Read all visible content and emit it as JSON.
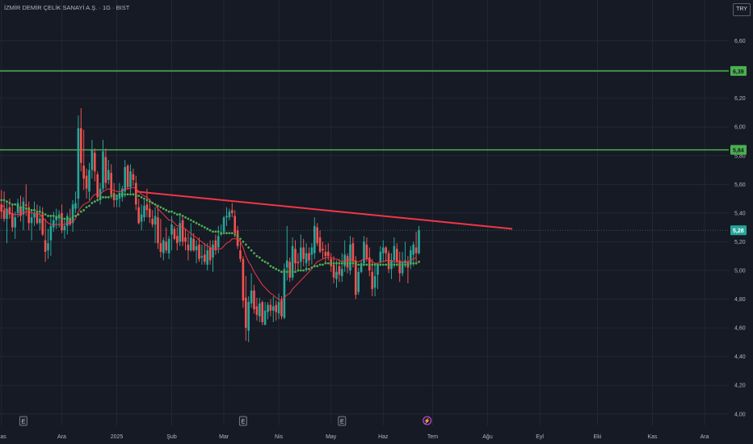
{
  "header": {
    "symbol_title": "İZMİR DEMİR ÇELİK SANAYİ A.Ş. · 1G · BIST",
    "currency": "TRY"
  },
  "colors": {
    "background": "#161a25",
    "grid": "#232733",
    "axis_text": "#b2b5be",
    "up": "#26a69a",
    "down": "#ef5350",
    "trendline": "#f23645",
    "level_line": "#4caf50",
    "ma_fast": "#f23645",
    "ma_slow": "#4caf50"
  },
  "chart_data": {
    "type": "candlestick",
    "y_axis": {
      "range": [
        3.92,
        6.8
      ],
      "tick_labels": [
        "6,60",
        "6,40",
        "6,20",
        "6,00",
        "5,80",
        "5,60",
        "5,40",
        "5,20",
        "5,00",
        "4,80",
        "4,60",
        "4,40",
        "4,20",
        "4,00"
      ],
      "tick_values": [
        6.6,
        6.4,
        6.2,
        6.0,
        5.8,
        5.6,
        5.4,
        5.2,
        5.0,
        4.8,
        4.6,
        4.4,
        4.2,
        4.0
      ],
      "scale": "linear"
    },
    "x_axis": {
      "tick_labels": [
        "Kas",
        "Ara",
        "2025",
        "Şub",
        "Mar",
        "Nis",
        "May",
        "Haz",
        "Tem",
        "Ağu",
        "Eyl",
        "Eki",
        "Kas",
        "Ara"
      ],
      "tick_index": [
        0,
        22,
        42,
        62,
        81,
        101,
        120,
        139,
        157,
        177,
        196,
        217,
        237,
        256
      ]
    },
    "grid": true,
    "last_price": 5.28,
    "last_price_label": "5,28",
    "horizontal_levels": [
      {
        "value": 6.39,
        "label": "6,39"
      },
      {
        "value": 5.84,
        "label": "5,84"
      }
    ],
    "trendline": {
      "start": {
        "index": 49,
        "price": 5.55
      },
      "end": {
        "index": 186,
        "price": 5.29
      }
    },
    "event_markers": [
      {
        "index": 8,
        "label": "E"
      },
      {
        "index": 88,
        "label": "E"
      },
      {
        "index": 124,
        "label": "E"
      },
      {
        "index": 155,
        "label": "⚡"
      }
    ],
    "ohlc": [
      [
        5.46,
        5.56,
        5.36,
        5.41
      ],
      [
        5.42,
        5.55,
        5.34,
        5.36
      ],
      [
        5.36,
        5.48,
        5.19,
        5.43
      ],
      [
        5.44,
        5.5,
        5.36,
        5.39
      ],
      [
        5.4,
        5.46,
        5.27,
        5.3
      ],
      [
        5.3,
        5.41,
        5.22,
        5.37
      ],
      [
        5.4,
        5.5,
        5.37,
        5.47
      ],
      [
        5.44,
        5.52,
        5.34,
        5.38
      ],
      [
        5.39,
        5.51,
        5.28,
        5.48
      ],
      [
        5.46,
        5.6,
        5.38,
        5.45
      ],
      [
        5.44,
        5.48,
        5.28,
        5.33
      ],
      [
        5.33,
        5.42,
        5.21,
        5.37
      ],
      [
        5.37,
        5.48,
        5.31,
        5.4
      ],
      [
        5.4,
        5.46,
        5.32,
        5.33
      ],
      [
        5.33,
        5.45,
        5.28,
        5.36
      ],
      [
        5.39,
        5.44,
        5.24,
        5.25
      ],
      [
        5.21,
        5.36,
        5.06,
        5.13
      ],
      [
        5.14,
        5.29,
        5.08,
        5.19
      ],
      [
        5.21,
        5.37,
        5.1,
        5.31
      ],
      [
        5.3,
        5.41,
        5.27,
        5.35
      ],
      [
        5.35,
        5.43,
        5.29,
        5.38
      ],
      [
        5.37,
        5.42,
        5.3,
        5.39
      ],
      [
        5.4,
        5.46,
        5.26,
        5.28
      ],
      [
        5.28,
        5.35,
        5.22,
        5.31
      ],
      [
        5.31,
        5.4,
        5.25,
        5.38
      ],
      [
        5.36,
        5.43,
        5.31,
        5.32
      ],
      [
        5.33,
        5.49,
        5.27,
        5.46
      ],
      [
        5.43,
        5.55,
        5.4,
        5.47
      ],
      [
        5.5,
        6.08,
        5.43,
        5.99
      ],
      [
        5.99,
        6.13,
        5.69,
        5.75
      ],
      [
        5.73,
        5.98,
        5.56,
        5.64
      ],
      [
        5.66,
        5.71,
        5.5,
        5.57
      ],
      [
        5.55,
        5.75,
        5.49,
        5.7
      ],
      [
        5.7,
        5.91,
        5.64,
        5.84
      ],
      [
        5.82,
        5.85,
        5.62,
        5.69
      ],
      [
        5.67,
        5.69,
        5.48,
        5.51
      ],
      [
        5.49,
        5.61,
        5.46,
        5.57
      ],
      [
        5.57,
        5.91,
        5.55,
        5.83
      ],
      [
        5.79,
        5.85,
        5.57,
        5.61
      ],
      [
        5.63,
        5.77,
        5.6,
        5.7
      ],
      [
        5.68,
        5.74,
        5.5,
        5.53
      ],
      [
        5.54,
        5.61,
        5.44,
        5.49
      ],
      [
        5.49,
        5.53,
        5.44,
        5.51
      ],
      [
        5.5,
        5.61,
        5.44,
        5.54
      ],
      [
        5.51,
        5.59,
        5.48,
        5.57
      ],
      [
        5.55,
        5.77,
        5.51,
        5.72
      ],
      [
        5.73,
        5.74,
        5.56,
        5.58
      ],
      [
        5.58,
        5.74,
        5.54,
        5.69
      ],
      [
        5.67,
        5.71,
        5.59,
        5.63
      ],
      [
        5.61,
        5.66,
        5.42,
        5.46
      ],
      [
        5.44,
        5.5,
        5.32,
        5.33
      ],
      [
        5.34,
        5.46,
        5.28,
        5.39
      ],
      [
        5.37,
        5.49,
        5.34,
        5.45
      ],
      [
        5.46,
        5.57,
        5.37,
        5.42
      ],
      [
        5.43,
        5.5,
        5.33,
        5.37
      ],
      [
        5.36,
        5.42,
        5.3,
        5.32
      ],
      [
        5.32,
        5.44,
        5.19,
        5.38
      ],
      [
        5.37,
        5.44,
        5.15,
        5.19
      ],
      [
        5.19,
        5.36,
        5.09,
        5.13
      ],
      [
        5.12,
        5.23,
        5.07,
        5.21
      ],
      [
        5.2,
        5.3,
        5.12,
        5.14
      ],
      [
        5.12,
        5.24,
        5.08,
        5.22
      ],
      [
        5.25,
        5.38,
        5.14,
        5.32
      ],
      [
        5.29,
        5.31,
        5.21,
        5.22
      ],
      [
        5.24,
        5.3,
        5.14,
        5.19
      ],
      [
        5.2,
        5.4,
        5.17,
        5.33
      ],
      [
        5.35,
        5.37,
        5.17,
        5.2
      ],
      [
        5.23,
        5.29,
        5.14,
        5.2
      ],
      [
        5.18,
        5.26,
        5.07,
        5.14
      ],
      [
        5.14,
        5.33,
        5.13,
        5.23
      ],
      [
        5.22,
        5.26,
        5.13,
        5.14
      ],
      [
        5.14,
        5.21,
        5.05,
        5.17
      ],
      [
        5.18,
        5.23,
        5.06,
        5.08
      ],
      [
        5.09,
        5.18,
        5.04,
        5.1
      ],
      [
        5.11,
        5.19,
        5.04,
        5.06
      ],
      [
        5.04,
        5.19,
        5.0,
        5.14
      ],
      [
        5.16,
        5.21,
        5.04,
        5.07
      ],
      [
        5.09,
        5.21,
        4.99,
        5.18
      ],
      [
        5.21,
        5.25,
        5.11,
        5.14
      ],
      [
        5.16,
        5.31,
        5.12,
        5.24
      ],
      [
        5.25,
        5.32,
        5.24,
        5.26
      ],
      [
        5.27,
        5.38,
        5.26,
        5.37
      ],
      [
        5.37,
        5.44,
        5.31,
        5.38
      ],
      [
        5.37,
        5.43,
        5.35,
        5.41
      ],
      [
        5.42,
        5.47,
        5.37,
        5.4
      ],
      [
        5.38,
        5.42,
        5.23,
        5.26
      ],
      [
        5.28,
        5.31,
        5.15,
        5.17
      ],
      [
        5.14,
        5.21,
        5.06,
        5.08
      ],
      [
        5.08,
        5.1,
        4.74,
        4.79
      ],
      [
        4.81,
        4.96,
        4.51,
        4.6
      ],
      [
        4.58,
        4.82,
        4.5,
        4.78
      ],
      [
        4.77,
        4.98,
        4.74,
        4.86
      ],
      [
        4.86,
        4.9,
        4.7,
        4.73
      ],
      [
        4.75,
        4.81,
        4.65,
        4.69
      ],
      [
        4.68,
        4.81,
        4.64,
        4.77
      ],
      [
        4.78,
        4.79,
        4.62,
        4.64
      ],
      [
        4.62,
        4.78,
        4.62,
        4.72
      ],
      [
        4.71,
        4.78,
        4.66,
        4.76
      ],
      [
        4.76,
        4.8,
        4.68,
        4.72
      ],
      [
        4.72,
        4.82,
        4.64,
        4.75
      ],
      [
        4.76,
        4.79,
        4.65,
        4.71
      ],
      [
        4.7,
        4.84,
        4.66,
        4.78
      ],
      [
        4.79,
        4.82,
        4.66,
        4.68
      ],
      [
        4.67,
        5.05,
        4.66,
        5.01
      ],
      [
        5.02,
        5.31,
        4.93,
        5.07
      ],
      [
        5.06,
        5.09,
        4.92,
        4.95
      ],
      [
        4.95,
        5.23,
        4.93,
        5.17
      ],
      [
        5.15,
        5.21,
        5.0,
        5.05
      ],
      [
        5.06,
        5.12,
        4.99,
        5.05
      ],
      [
        5.06,
        5.25,
        5.01,
        5.16
      ],
      [
        5.16,
        5.22,
        5.03,
        5.08
      ],
      [
        5.05,
        5.19,
        4.99,
        5.12
      ],
      [
        5.12,
        5.16,
        5.03,
        5.07
      ],
      [
        5.11,
        5.19,
        5.04,
        5.16
      ],
      [
        5.12,
        5.37,
        5.08,
        5.31
      ],
      [
        5.3,
        5.33,
        5.17,
        5.19
      ],
      [
        5.23,
        5.28,
        5.12,
        5.13
      ],
      [
        5.15,
        5.2,
        5.08,
        5.14
      ],
      [
        5.13,
        5.18,
        5.05,
        5.1
      ],
      [
        5.13,
        5.19,
        5.07,
        5.1
      ],
      [
        5.08,
        5.12,
        4.99,
        5.03
      ],
      [
        5.04,
        5.1,
        4.91,
        4.95
      ],
      [
        4.94,
        5.07,
        4.88,
        4.99
      ],
      [
        5.03,
        5.08,
        4.92,
        4.97
      ],
      [
        4.96,
        5.12,
        4.92,
        5.01
      ],
      [
        5.03,
        5.21,
        4.99,
        5.11
      ],
      [
        5.1,
        5.12,
        4.98,
        5.02
      ],
      [
        5.0,
        5.24,
        4.97,
        5.18
      ],
      [
        5.19,
        5.23,
        5.02,
        5.06
      ],
      [
        5.07,
        5.1,
        4.8,
        4.83
      ],
      [
        4.85,
        5.02,
        4.83,
        4.99
      ],
      [
        4.99,
        5.07,
        4.98,
        5.05
      ],
      [
        5.05,
        5.24,
        5.03,
        5.2
      ],
      [
        5.18,
        5.23,
        5.06,
        5.08
      ],
      [
        5.09,
        5.16,
        4.96,
        5.0
      ],
      [
        4.99,
        5.08,
        4.82,
        4.87
      ],
      [
        4.88,
        5.04,
        4.82,
        4.96
      ],
      [
        4.97,
        5.05,
        4.87,
        5.04
      ],
      [
        5.06,
        5.17,
        5.03,
        5.13
      ],
      [
        5.12,
        5.21,
        5.06,
        5.16
      ],
      [
        5.16,
        5.17,
        5.06,
        5.12
      ],
      [
        5.12,
        5.14,
        4.98,
        5.01
      ],
      [
        5.01,
        5.12,
        4.94,
        5.07
      ],
      [
        5.07,
        5.23,
        5.02,
        5.17
      ],
      [
        5.15,
        5.19,
        5.03,
        5.06
      ],
      [
        5.07,
        5.13,
        4.92,
        4.98
      ],
      [
        4.98,
        5.13,
        4.96,
        5.06
      ],
      [
        5.05,
        5.2,
        5.02,
        5.07
      ],
      [
        5.06,
        5.1,
        4.91,
        5.02
      ],
      [
        5.04,
        5.17,
        5.01,
        5.14
      ],
      [
        5.11,
        5.2,
        5.03,
        5.18
      ],
      [
        5.16,
        5.27,
        5.04,
        5.12
      ],
      [
        5.12,
        5.31,
        5.11,
        5.28
      ]
    ],
    "ma_fast": [
      5.46,
      5.44,
      5.41,
      5.41,
      5.39,
      5.39,
      5.39,
      5.39,
      5.4,
      5.41,
      5.41,
      5.4,
      5.4,
      5.4,
      5.39,
      5.37,
      5.35,
      5.33,
      5.32,
      5.32,
      5.32,
      5.32,
      5.32,
      5.32,
      5.33,
      5.33,
      5.34,
      5.36,
      5.41,
      5.44,
      5.46,
      5.47,
      5.48,
      5.51,
      5.53,
      5.53,
      5.53,
      5.55,
      5.56,
      5.57,
      5.56,
      5.56,
      5.55,
      5.55,
      5.55,
      5.57,
      5.57,
      5.57,
      5.58,
      5.57,
      5.55,
      5.53,
      5.52,
      5.51,
      5.49,
      5.47,
      5.46,
      5.43,
      5.41,
      5.39,
      5.37,
      5.35,
      5.35,
      5.33,
      5.31,
      5.31,
      5.3,
      5.29,
      5.27,
      5.26,
      5.24,
      5.23,
      5.21,
      5.2,
      5.18,
      5.17,
      5.16,
      5.15,
      5.15,
      5.15,
      5.15,
      5.17,
      5.19,
      5.2,
      5.22,
      5.22,
      5.22,
      5.2,
      5.16,
      5.1,
      5.06,
      5.03,
      4.99,
      4.96,
      4.93,
      4.9,
      4.88,
      4.86,
      4.84,
      4.83,
      4.81,
      4.8,
      4.79,
      4.81,
      4.83,
      4.84,
      4.87,
      4.89,
      4.91,
      4.93,
      4.95,
      4.97,
      4.99,
      5.01,
      5.04,
      5.06,
      5.07,
      5.08,
      5.09,
      5.09,
      5.09,
      5.08,
      5.08,
      5.07,
      5.06,
      5.07,
      5.07,
      5.08,
      5.07,
      5.06,
      5.06,
      5.07,
      5.08,
      5.08,
      5.08,
      5.06,
      5.05,
      5.05,
      5.06,
      5.06,
      5.07,
      5.07,
      5.07,
      5.06,
      5.06,
      5.06,
      5.06,
      5.06,
      5.06,
      5.07,
      5.08,
      5.09
    ],
    "ma_slow": [
      5.49,
      5.49,
      5.48,
      5.47,
      5.46,
      5.46,
      5.45,
      5.44,
      5.44,
      5.43,
      5.43,
      5.42,
      5.42,
      5.41,
      5.41,
      5.4,
      5.39,
      5.38,
      5.38,
      5.38,
      5.37,
      5.37,
      5.36,
      5.36,
      5.36,
      5.36,
      5.37,
      5.38,
      5.39,
      5.41,
      5.42,
      5.44,
      5.45,
      5.47,
      5.48,
      5.49,
      5.5,
      5.51,
      5.51,
      5.51,
      5.52,
      5.52,
      5.52,
      5.53,
      5.53,
      5.53,
      5.53,
      5.53,
      5.53,
      5.52,
      5.52,
      5.51,
      5.5,
      5.49,
      5.48,
      5.47,
      5.46,
      5.45,
      5.44,
      5.43,
      5.42,
      5.41,
      5.41,
      5.4,
      5.39,
      5.39,
      5.38,
      5.37,
      5.36,
      5.35,
      5.34,
      5.33,
      5.32,
      5.31,
      5.3,
      5.29,
      5.28,
      5.27,
      5.27,
      5.27,
      5.26,
      5.26,
      5.26,
      5.26,
      5.26,
      5.25,
      5.24,
      5.22,
      5.2,
      5.18,
      5.16,
      5.14,
      5.12,
      5.1,
      5.09,
      5.07,
      5.06,
      5.05,
      5.03,
      5.02,
      5.01,
      5.0,
      4.99,
      4.99,
      4.99,
      4.99,
      4.99,
      4.99,
      5.0,
      5.0,
      5.0,
      5.01,
      5.01,
      5.02,
      5.03,
      5.03,
      5.04,
      5.04,
      5.05,
      5.05,
      5.05,
      5.05,
      5.05,
      5.05,
      5.05,
      5.05,
      5.05,
      5.05,
      5.05,
      5.05,
      5.04,
      5.04,
      5.04,
      5.04,
      5.04,
      5.04,
      5.04,
      5.04,
      5.04,
      5.04,
      5.04,
      5.04,
      5.04,
      5.04,
      5.04,
      5.04,
      5.04,
      5.04,
      5.04,
      5.05,
      5.05,
      5.05,
      5.06
    ]
  }
}
